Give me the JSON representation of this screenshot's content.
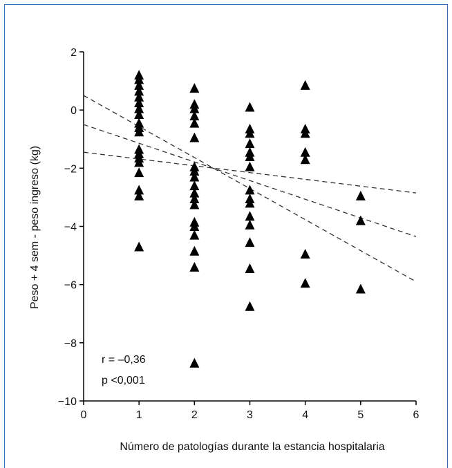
{
  "chart_data": {
    "type": "scatter",
    "title": "",
    "xlabel": "Número de patologías durante la estancia hospitalaria",
    "ylabel": "Peso + 4 sem -  peso ingreso (kg)",
    "xlim": [
      0,
      6
    ],
    "ylim": [
      -10,
      2
    ],
    "xticks": [
      0,
      1,
      2,
      3,
      4,
      5,
      6
    ],
    "yticks": [
      2,
      0,
      -2,
      -4,
      -6,
      -8,
      -10
    ],
    "ytick_labels": [
      "2",
      "0",
      "−2",
      "−4",
      "−6",
      "−8",
      "−10"
    ],
    "xtick_labels": [
      "0",
      "1",
      "2",
      "3",
      "4",
      "5",
      "6"
    ],
    "grid": false,
    "marker": "triangle",
    "marker_color": "#000000",
    "points": [
      {
        "x": 1,
        "y": 1.2
      },
      {
        "x": 1,
        "y": 1.05
      },
      {
        "x": 1,
        "y": 0.85
      },
      {
        "x": 1,
        "y": 0.65
      },
      {
        "x": 1,
        "y": 0.45
      },
      {
        "x": 1,
        "y": 0.25
      },
      {
        "x": 1,
        "y": 0.05
      },
      {
        "x": 1,
        "y": -0.15
      },
      {
        "x": 1,
        "y": -0.45
      },
      {
        "x": 1,
        "y": -0.6
      },
      {
        "x": 1,
        "y": -0.75
      },
      {
        "x": 1,
        "y": -1.35
      },
      {
        "x": 1,
        "y": -1.5
      },
      {
        "x": 1,
        "y": -1.65
      },
      {
        "x": 1,
        "y": -1.8
      },
      {
        "x": 1,
        "y": -2.15
      },
      {
        "x": 1,
        "y": -2.75
      },
      {
        "x": 1,
        "y": -2.95
      },
      {
        "x": 1,
        "y": -4.7
      },
      {
        "x": 2,
        "y": 0.75
      },
      {
        "x": 2,
        "y": 0.2
      },
      {
        "x": 2,
        "y": 0.05
      },
      {
        "x": 2,
        "y": -0.2
      },
      {
        "x": 2,
        "y": -0.45
      },
      {
        "x": 2,
        "y": -0.95
      },
      {
        "x": 2,
        "y": -1.95
      },
      {
        "x": 2,
        "y": -2.1
      },
      {
        "x": 2,
        "y": -2.3
      },
      {
        "x": 2,
        "y": -2.6
      },
      {
        "x": 2,
        "y": -2.85
      },
      {
        "x": 2,
        "y": -3.05
      },
      {
        "x": 2,
        "y": -3.25
      },
      {
        "x": 2,
        "y": -3.85
      },
      {
        "x": 2,
        "y": -4.0
      },
      {
        "x": 2,
        "y": -4.3
      },
      {
        "x": 2,
        "y": -4.85
      },
      {
        "x": 2,
        "y": -5.4
      },
      {
        "x": 2,
        "y": -8.7
      },
      {
        "x": 3,
        "y": 0.1
      },
      {
        "x": 3,
        "y": -0.65
      },
      {
        "x": 3,
        "y": -0.8
      },
      {
        "x": 3,
        "y": -1.15
      },
      {
        "x": 3,
        "y": -1.45
      },
      {
        "x": 3,
        "y": -1.6
      },
      {
        "x": 3,
        "y": -1.95
      },
      {
        "x": 3,
        "y": -2.75
      },
      {
        "x": 3,
        "y": -3.05
      },
      {
        "x": 3,
        "y": -3.2
      },
      {
        "x": 3,
        "y": -3.65
      },
      {
        "x": 3,
        "y": -3.95
      },
      {
        "x": 3,
        "y": -4.55
      },
      {
        "x": 3,
        "y": -5.45
      },
      {
        "x": 3,
        "y": -6.75
      },
      {
        "x": 4,
        "y": 0.85
      },
      {
        "x": 4,
        "y": -0.65
      },
      {
        "x": 4,
        "y": -0.8
      },
      {
        "x": 4,
        "y": -1.45
      },
      {
        "x": 4,
        "y": -1.7
      },
      {
        "x": 4,
        "y": -4.95
      },
      {
        "x": 4,
        "y": -5.95
      },
      {
        "x": 5,
        "y": -2.95
      },
      {
        "x": 5,
        "y": -3.8
      },
      {
        "x": 5,
        "y": -6.15
      }
    ],
    "lines": [
      {
        "points": [
          {
            "x": 0,
            "y": 0.5
          },
          {
            "x": 6,
            "y": -5.9
          }
        ]
      },
      {
        "points": [
          {
            "x": 0,
            "y": -0.5
          },
          {
            "x": 6,
            "y": -4.35
          }
        ]
      },
      {
        "points": [
          {
            "x": 0,
            "y": -1.45
          },
          {
            "x": 6,
            "y": -2.85
          }
        ]
      }
    ],
    "line_style": "dashed",
    "annotations": [
      "r = –0,36",
      "p <0,001"
    ]
  }
}
